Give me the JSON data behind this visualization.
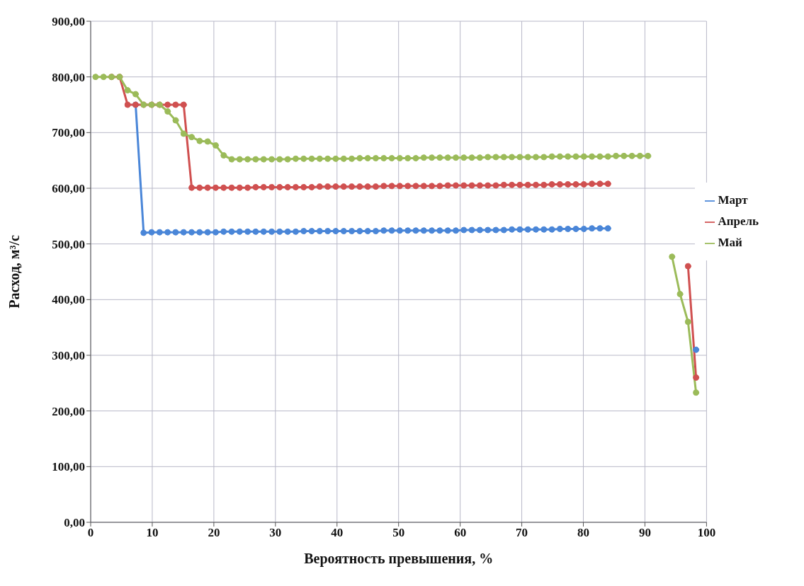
{
  "chart_data": {
    "type": "line",
    "xlabel": "Вероятность превышения, %",
    "ylabel": "Расход, м³/с",
    "x": [
      0.8,
      2.1,
      3.4,
      4.7,
      6,
      7.3,
      8.6,
      9.9,
      11.2,
      12.5,
      13.8,
      15.1,
      16.4,
      17.7,
      19,
      20.3,
      21.6,
      22.9,
      24.2,
      25.5,
      26.8,
      28.1,
      29.4,
      30.7,
      32,
      33.3,
      34.6,
      35.9,
      37.2,
      38.5,
      39.8,
      41.1,
      42.4,
      43.7,
      45,
      46.3,
      47.6,
      48.9,
      50.2,
      51.5,
      52.8,
      54.1,
      55.4,
      56.7,
      58,
      59.3,
      60.6,
      61.9,
      63.2,
      64.5,
      65.8,
      67.1,
      68.4,
      69.7,
      71,
      72.3,
      73.6,
      74.9,
      76.2,
      77.5,
      78.8,
      80.1,
      81.4,
      82.7,
      84,
      85.3,
      86.6,
      87.9,
      89.2,
      90.5,
      91.8,
      93.1,
      94.4,
      95.7,
      97,
      98.3
    ],
    "series": [
      {
        "name": "Март",
        "color": "#4a86d8",
        "values": [
          null,
          null,
          null,
          null,
          null,
          750,
          520,
          521,
          521,
          521,
          521,
          521,
          521,
          521,
          521,
          521,
          522,
          522,
          522,
          522,
          522,
          522,
          522,
          522,
          522,
          522,
          523,
          523,
          523,
          523,
          523,
          523,
          523,
          523,
          523,
          523,
          524,
          524,
          524,
          524,
          524,
          524,
          524,
          524,
          524,
          524,
          525,
          525,
          525,
          525,
          525,
          525,
          526,
          526,
          526,
          526,
          526,
          526,
          527,
          527,
          527,
          527,
          528,
          528,
          528,
          null,
          null,
          null,
          null,
          null,
          null,
          null,
          null,
          null,
          null,
          310
        ]
      },
      {
        "name": "Апрель",
        "color": "#d05050",
        "values": [
          null,
          null,
          800,
          800,
          750,
          750,
          750,
          750,
          750,
          750,
          750,
          750,
          601,
          601,
          601,
          601,
          601,
          601,
          601,
          601,
          602,
          602,
          602,
          602,
          602,
          602,
          602,
          602,
          603,
          603,
          603,
          603,
          603,
          603,
          603,
          603,
          604,
          604,
          604,
          604,
          604,
          604,
          604,
          604,
          605,
          605,
          605,
          605,
          605,
          605,
          605,
          606,
          606,
          606,
          606,
          606,
          606,
          607,
          607,
          607,
          607,
          607,
          608,
          608,
          608,
          null,
          null,
          null,
          null,
          null,
          null,
          null,
          null,
          null,
          460,
          260
        ]
      },
      {
        "name": "Май",
        "color": "#9bbb59",
        "values": [
          800,
          800,
          800,
          800,
          776,
          769,
          750,
          750,
          750,
          738,
          722,
          698,
          692,
          685,
          684,
          677,
          659,
          652,
          652,
          652,
          652,
          652,
          652,
          652,
          652,
          653,
          653,
          653,
          653,
          653,
          653,
          653,
          653,
          654,
          654,
          654,
          654,
          654,
          654,
          654,
          654,
          655,
          655,
          655,
          655,
          655,
          655,
          655,
          655,
          656,
          656,
          656,
          656,
          656,
          656,
          656,
          656,
          657,
          657,
          657,
          657,
          657,
          657,
          657,
          657,
          658,
          658,
          658,
          658,
          658,
          null,
          null,
          477,
          410,
          360,
          233
        ]
      }
    ],
    "xlim": [
      0,
      100
    ],
    "xticks": [
      0,
      10,
      20,
      30,
      40,
      50,
      60,
      70,
      80,
      90,
      100
    ],
    "ylim": [
      0,
      900
    ],
    "yticks": [
      {
        "value": 0,
        "label": "0,00"
      },
      {
        "value": 100,
        "label": "100,00"
      },
      {
        "value": 200,
        "label": "200,00"
      },
      {
        "value": 300,
        "label": "300,00"
      },
      {
        "value": 400,
        "label": "400,00"
      },
      {
        "value": 500,
        "label": "500,00"
      },
      {
        "value": 600,
        "label": "600,00"
      },
      {
        "value": 700,
        "label": "700,00"
      },
      {
        "value": 800,
        "label": "800,00"
      },
      {
        "value": 900,
        "label": "900,00"
      }
    ],
    "grid": true,
    "legend": "right",
    "marker": "circle",
    "line_style": "solid"
  }
}
